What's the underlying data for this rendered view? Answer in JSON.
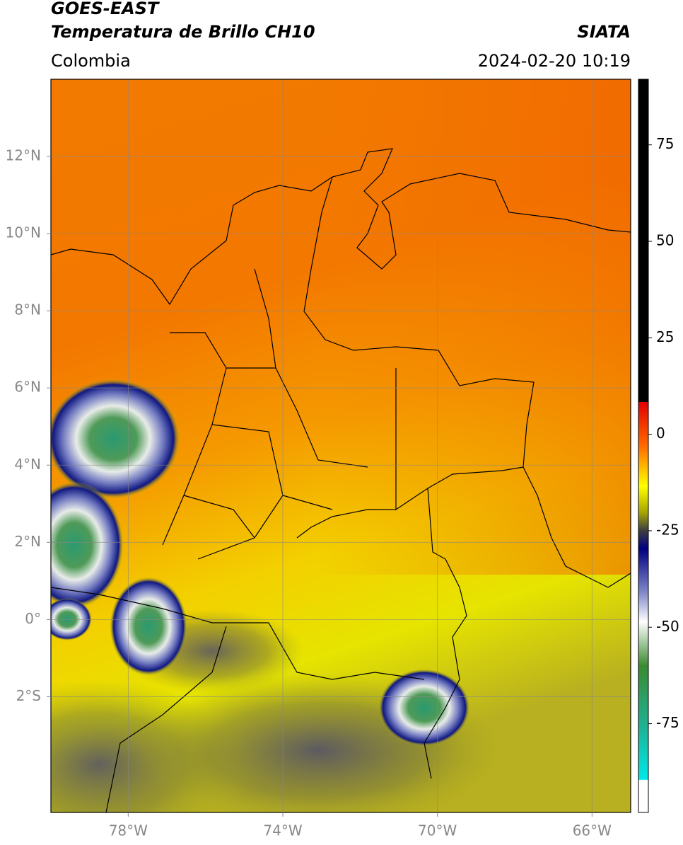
{
  "header": {
    "title_line1": "GOES-EAST",
    "title_line2": "Temperatura de Brillo CH10",
    "source": "SIATA",
    "region": "Colombia",
    "datetime": "2024-02-20 10:19"
  },
  "map": {
    "lon_range": [
      -80,
      -65
    ],
    "lat_range": [
      -5,
      14
    ],
    "lon_ticks": [
      {
        "value": -78,
        "label": "78°W"
      },
      {
        "value": -74,
        "label": "74°W"
      },
      {
        "value": -70,
        "label": "70°W"
      },
      {
        "value": -66,
        "label": "66°W"
      }
    ],
    "lat_ticks": [
      {
        "value": 12,
        "label": "12°N"
      },
      {
        "value": 10,
        "label": "10°N"
      },
      {
        "value": 8,
        "label": "8°N"
      },
      {
        "value": 6,
        "label": "6°N"
      },
      {
        "value": 4,
        "label": "4°N"
      },
      {
        "value": 2,
        "label": "2°N"
      },
      {
        "value": 0,
        "label": "0°"
      },
      {
        "value": -2,
        "label": "2°S"
      }
    ]
  },
  "colorbar": {
    "range": [
      -98,
      92
    ],
    "ticks": [
      75,
      50,
      25,
      0,
      -25,
      -50,
      -75
    ]
  }
}
